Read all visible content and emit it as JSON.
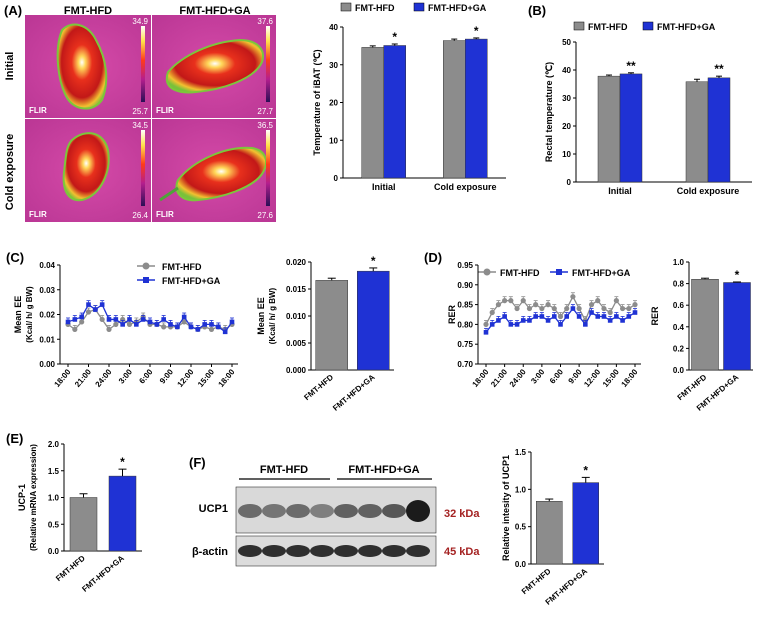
{
  "colors": {
    "hfd": "#8c8c8c",
    "ga": "#1f32d4",
    "axis": "#000000",
    "thermal_bg": "#c8409a"
  },
  "panels": {
    "A": "(A)",
    "B": "(B)",
    "C": "(C)",
    "D": "(D)",
    "E": "(E)",
    "F": "(F)"
  },
  "legend": {
    "hfd": "FMT-HFD",
    "ga": "FMT-HFD+GA"
  },
  "thermal": {
    "col_labels": [
      "FMT-HFD",
      "FMT-HFD+GA"
    ],
    "row_labels": [
      "Initial",
      "Cold exposure"
    ],
    "logo": "FLIR",
    "scales": [
      {
        "max": "34.9",
        "min": "25.7"
      },
      {
        "max": "37.6",
        "min": "27.7"
      },
      {
        "max": "34.5",
        "min": "26.4"
      },
      {
        "max": "36.5",
        "min": "27.6"
      }
    ]
  },
  "western": {
    "groups": [
      "FMT-HFD",
      "FMT-HFD+GA"
    ],
    "rows": [
      {
        "label": "UCP1",
        "kda": "32 kDa"
      },
      {
        "label": "β-actin",
        "kda": "45 kDa"
      }
    ]
  },
  "chart_data": [
    {
      "id": "A-ibat",
      "type": "bar",
      "categories": [
        "Initial",
        "Cold exposure"
      ],
      "series": [
        {
          "name": "FMT-HFD",
          "values": [
            34.6,
            36.4
          ],
          "errors": [
            0.4,
            0.4
          ]
        },
        {
          "name": "FMT-HFD+GA",
          "values": [
            35.1,
            36.8
          ],
          "errors": [
            0.4,
            0.3
          ]
        }
      ],
      "significance": [
        "*",
        "*"
      ],
      "ylabel": "Temperature of iBAT (℃)",
      "ylim": [
        0,
        40
      ],
      "yticks": [
        "0",
        "10",
        "20",
        "30",
        "40"
      ]
    },
    {
      "id": "B-rectal",
      "type": "bar",
      "categories": [
        "Initial",
        "Cold exposure"
      ],
      "series": [
        {
          "name": "FMT-HFD",
          "values": [
            37.8,
            35.8
          ],
          "errors": [
            0.4,
            0.9
          ]
        },
        {
          "name": "FMT-HFD+GA",
          "values": [
            38.6,
            37.2
          ],
          "errors": [
            0.4,
            0.6
          ]
        }
      ],
      "significance": [
        "**",
        "**"
      ],
      "ylabel": "Rectal temperature (℃)",
      "ylim": [
        0,
        50
      ],
      "yticks": [
        "0",
        "10",
        "20",
        "30",
        "40",
        "50"
      ]
    },
    {
      "id": "C-ee-line",
      "type": "line",
      "x_count": 25,
      "x_ticks": [
        "18:00",
        "21:00",
        "24:00",
        "3:00",
        "6:00",
        "9:00",
        "12:00",
        "15:00",
        "18:00"
      ],
      "x_tick_index": [
        0,
        3,
        6,
        9,
        12,
        15,
        18,
        21,
        24
      ],
      "series": [
        {
          "name": "FMT-HFD",
          "values": [
            0.016,
            0.014,
            0.017,
            0.021,
            0.022,
            0.018,
            0.014,
            0.016,
            0.018,
            0.016,
            0.017,
            0.019,
            0.016,
            0.016,
            0.015,
            0.015,
            0.015,
            0.017,
            0.015,
            0.014,
            0.015,
            0.014,
            0.015,
            0.014,
            0.016
          ]
        },
        {
          "name": "FMT-HFD+GA",
          "values": [
            0.017,
            0.018,
            0.019,
            0.024,
            0.022,
            0.024,
            0.018,
            0.018,
            0.016,
            0.018,
            0.016,
            0.018,
            0.017,
            0.016,
            0.018,
            0.016,
            0.015,
            0.019,
            0.015,
            0.014,
            0.016,
            0.016,
            0.015,
            0.013,
            0.017
          ]
        }
      ],
      "ylabel": [
        "Mean EE",
        "(Kcal/ h/ g BW)"
      ],
      "ylim": [
        0,
        0.04
      ],
      "yticks": [
        "0.00",
        "0.01",
        "0.02",
        "0.03",
        "0.04"
      ]
    },
    {
      "id": "C-ee-bar",
      "type": "bar",
      "categories": [
        "FMT-HFD",
        "FMT-HFD+GA"
      ],
      "values": [
        0.0166,
        0.0183
      ],
      "errors": [
        0.0004,
        0.0006
      ],
      "significance": "*",
      "ylabel": [
        "Mean EE",
        "(Kcal/ h/ g BW)"
      ],
      "ylim": [
        0,
        0.02
      ],
      "yticks": [
        "0.000",
        "0.005",
        "0.010",
        "0.015",
        "0.020"
      ]
    },
    {
      "id": "D-rer-line",
      "type": "line",
      "x_count": 25,
      "x_ticks": [
        "18:00",
        "21:00",
        "24:00",
        "3:00",
        "6:00",
        "9:00",
        "12:00",
        "15:00",
        "18:00"
      ],
      "x_tick_index": [
        0,
        3,
        6,
        9,
        12,
        15,
        18,
        21,
        24
      ],
      "series": [
        {
          "name": "FMT-HFD",
          "values": [
            0.8,
            0.83,
            0.85,
            0.86,
            0.86,
            0.84,
            0.86,
            0.84,
            0.85,
            0.84,
            0.85,
            0.84,
            0.82,
            0.84,
            0.87,
            0.84,
            0.81,
            0.85,
            0.86,
            0.84,
            0.83,
            0.86,
            0.84,
            0.84,
            0.85
          ]
        },
        {
          "name": "FMT-HFD+GA",
          "values": [
            0.78,
            0.8,
            0.81,
            0.82,
            0.8,
            0.8,
            0.81,
            0.81,
            0.82,
            0.82,
            0.81,
            0.82,
            0.8,
            0.82,
            0.84,
            0.82,
            0.8,
            0.83,
            0.82,
            0.82,
            0.81,
            0.82,
            0.81,
            0.82,
            0.83
          ]
        }
      ],
      "ylabel": "RER",
      "ylim": [
        0.7,
        0.95
      ],
      "yticks": [
        "0.70",
        "0.75",
        "0.80",
        "0.85",
        "0.90",
        "0.95"
      ]
    },
    {
      "id": "D-rer-bar",
      "type": "bar",
      "categories": [
        "FMT-HFD",
        "FMT-HFD+GA"
      ],
      "values": [
        0.84,
        0.81
      ],
      "errors": [
        0.01,
        0.005
      ],
      "significance": "*",
      "ylabel": "RER",
      "ylim": [
        0,
        1.0
      ],
      "yticks": [
        "0.0",
        "0.2",
        "0.4",
        "0.6",
        "0.8",
        "1.0"
      ]
    },
    {
      "id": "E-ucp1-mrna",
      "type": "bar",
      "categories": [
        "FMT-HFD",
        "FMT-HFD+GA"
      ],
      "values": [
        1.0,
        1.4
      ],
      "errors": [
        0.07,
        0.13
      ],
      "significance": "*",
      "ylabel": [
        "UCP-1",
        "(Relative mRNA expression)"
      ],
      "ylim": [
        0,
        2.0
      ],
      "yticks": [
        "0.0",
        "0.5",
        "1.0",
        "1.5",
        "2.0"
      ]
    },
    {
      "id": "F-ucp1-protein",
      "type": "bar",
      "categories": [
        "FMT-HFD",
        "FMT-HFD+GA"
      ],
      "values": [
        0.84,
        1.09
      ],
      "errors": [
        0.03,
        0.07
      ],
      "significance": "*",
      "ylabel": "Relative intesity of UCP1",
      "ylim": [
        0,
        1.5
      ],
      "yticks": [
        "0.0",
        "0.5",
        "1.0",
        "1.5"
      ]
    }
  ]
}
